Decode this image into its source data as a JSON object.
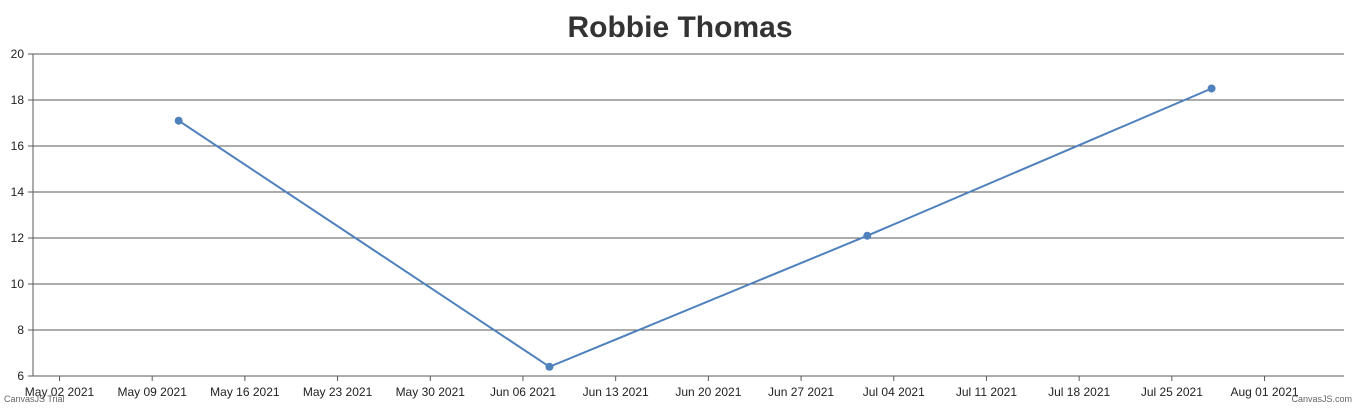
{
  "chart_data": {
    "type": "line",
    "title": "Robbie Thomas",
    "xlabel": "",
    "ylabel": "",
    "x_tick_labels": [
      "May 02 2021",
      "May 09 2021",
      "May 16 2021",
      "May 23 2021",
      "May 30 2021",
      "Jun 06 2021",
      "Jun 13 2021",
      "Jun 20 2021",
      "Jun 27 2021",
      "Jul 04 2021",
      "Jul 11 2021",
      "Jul 18 2021",
      "Jul 25 2021",
      "Aug 01 2021"
    ],
    "y_tick_labels": [
      "6",
      "8",
      "10",
      "12",
      "14",
      "16",
      "18",
      "20"
    ],
    "xlim": [
      "2021-04-30",
      "2021-08-07"
    ],
    "ylim": [
      6,
      20
    ],
    "grid": "horizontal",
    "series": [
      {
        "color": "#4f81bc",
        "points": [
          {
            "x": "2021-05-11",
            "y": 17.1
          },
          {
            "x": "2021-06-08",
            "y": 6.4
          },
          {
            "x": "2021-07-02",
            "y": 12.1
          },
          {
            "x": "2021-07-28",
            "y": 18.5
          }
        ]
      }
    ]
  },
  "credits": {
    "left": "CanvasJS Trial",
    "right": "CanvasJS.com"
  }
}
